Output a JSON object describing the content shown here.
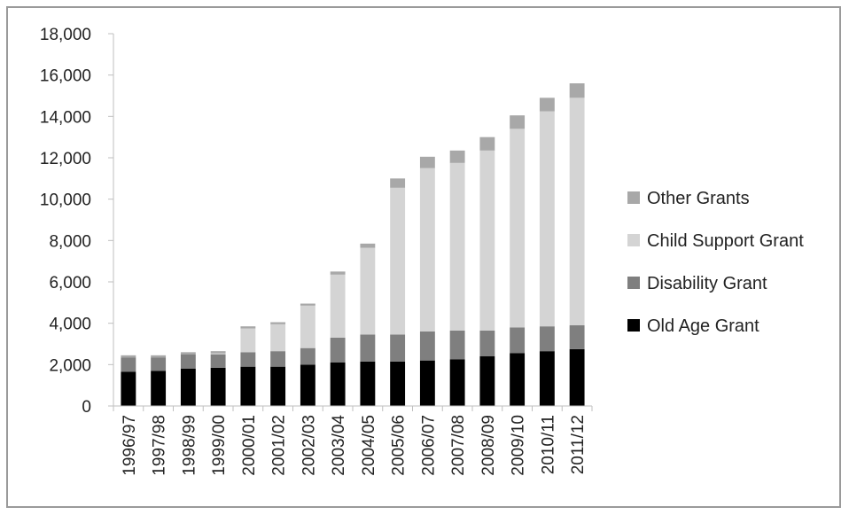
{
  "chart_data": {
    "type": "bar",
    "stacked": true,
    "title": "",
    "xlabel": "",
    "ylabel": "",
    "ylim": [
      0,
      18000
    ],
    "yticks": [
      0,
      2000,
      4000,
      6000,
      8000,
      10000,
      12000,
      14000,
      16000,
      18000
    ],
    "ytick_labels": [
      "0",
      "2,000",
      "4,000",
      "6,000",
      "8,000",
      "10,000",
      "12,000",
      "14,000",
      "16,000",
      "18,000"
    ],
    "grid": false,
    "legend_position": "right",
    "categories": [
      "1996/97",
      "1997/98",
      "1998/99",
      "1999/00",
      "2000/01",
      "2001/02",
      "2002/03",
      "2003/04",
      "2004/05",
      "2005/06",
      "2006/07",
      "2007/08",
      "2008/09",
      "2009/10",
      "2010/11",
      "2011/12"
    ],
    "series": [
      {
        "name": "Old Age Grant",
        "color": "#000000",
        "values": [
          1650,
          1700,
          1800,
          1850,
          1900,
          1900,
          2000,
          2100,
          2150,
          2150,
          2200,
          2250,
          2400,
          2550,
          2650,
          2750
        ]
      },
      {
        "name": "Disability Grant",
        "color": "#7f7f7f",
        "values": [
          700,
          650,
          700,
          650,
          700,
          750,
          800,
          1200,
          1300,
          1300,
          1400,
          1400,
          1250,
          1250,
          1200,
          1150
        ]
      },
      {
        "name": "Child Support Grant",
        "color": "#d4d4d4",
        "values": [
          0,
          0,
          0,
          50,
          1150,
          1300,
          2050,
          3050,
          4200,
          7100,
          7900,
          8100,
          8700,
          9600,
          10400,
          11000
        ]
      },
      {
        "name": "Other Grants",
        "color": "#a8a8a8",
        "values": [
          100,
          100,
          100,
          100,
          100,
          100,
          100,
          150,
          200,
          450,
          550,
          600,
          650,
          650,
          650,
          700
        ]
      }
    ]
  }
}
